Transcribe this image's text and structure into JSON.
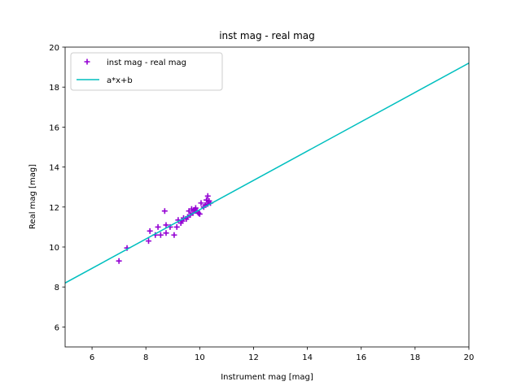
{
  "chart_data": {
    "type": "scatter",
    "title": "inst mag - real mag",
    "xlabel": "Instrument mag [mag]",
    "ylabel": "Real mag [mag]",
    "xlim": [
      5,
      20
    ],
    "ylim": [
      5,
      20
    ],
    "xticks": [
      "6",
      "8",
      "10",
      "12",
      "14",
      "16",
      "18",
      "20"
    ],
    "yticks": [
      "6",
      "8",
      "10",
      "12",
      "14",
      "16",
      "18",
      "20"
    ],
    "grid": false,
    "legend_position": "top-left",
    "series": [
      {
        "name": "inst mag - real mag",
        "kind": "scatter",
        "marker": "plus",
        "color": "#9400d3",
        "points": [
          [
            7.0,
            9.3
          ],
          [
            7.3,
            9.95
          ],
          [
            8.1,
            10.3
          ],
          [
            8.15,
            10.8
          ],
          [
            8.35,
            10.6
          ],
          [
            8.45,
            11.0
          ],
          [
            8.55,
            10.6
          ],
          [
            8.7,
            11.8
          ],
          [
            8.75,
            10.7
          ],
          [
            8.75,
            11.1
          ],
          [
            8.9,
            11.0
          ],
          [
            9.05,
            10.6
          ],
          [
            9.15,
            11.0
          ],
          [
            9.2,
            11.35
          ],
          [
            9.3,
            11.2
          ],
          [
            9.35,
            11.3
          ],
          [
            9.4,
            11.45
          ],
          [
            9.5,
            11.4
          ],
          [
            9.55,
            11.5
          ],
          [
            9.6,
            11.8
          ],
          [
            9.65,
            11.6
          ],
          [
            9.7,
            11.9
          ],
          [
            9.75,
            11.7
          ],
          [
            9.8,
            11.85
          ],
          [
            9.85,
            11.95
          ],
          [
            9.9,
            11.8
          ],
          [
            9.95,
            11.7
          ],
          [
            10.0,
            11.65
          ],
          [
            10.05,
            12.2
          ],
          [
            10.15,
            12.0
          ],
          [
            10.2,
            12.1
          ],
          [
            10.25,
            12.35
          ],
          [
            10.3,
            12.55
          ],
          [
            10.35,
            12.3
          ],
          [
            10.4,
            12.2
          ],
          [
            10.3,
            12.15
          ]
        ]
      },
      {
        "name": "a*x+b",
        "kind": "line",
        "color": "#00bfbf",
        "points": [
          [
            5,
            8.2
          ],
          [
            20,
            19.2
          ]
        ]
      }
    ]
  }
}
